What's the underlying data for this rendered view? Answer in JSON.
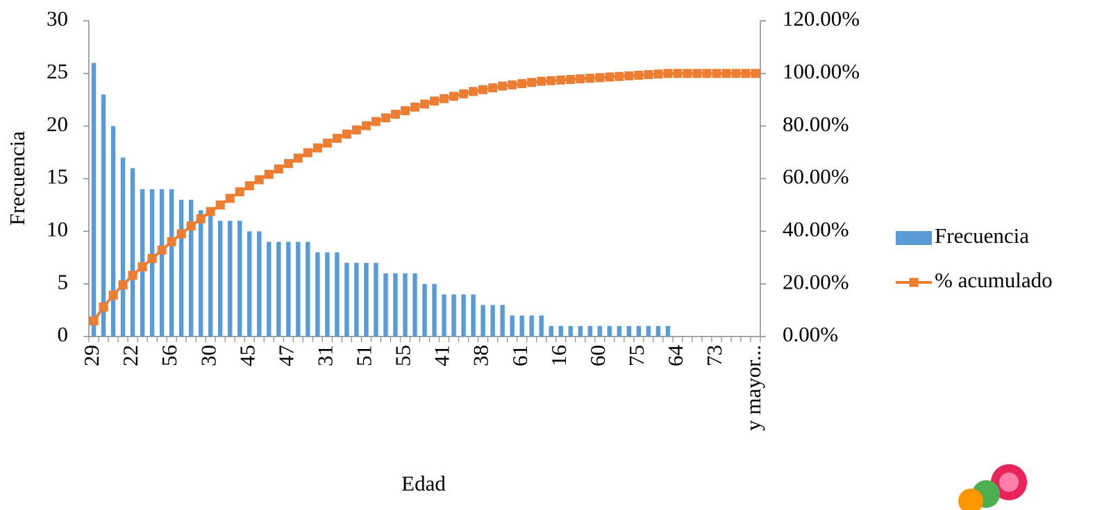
{
  "chart_data": {
    "type": "pareto",
    "x_label": "Edad",
    "y_label": "Frecuencia",
    "categories": [
      "29",
      null,
      null,
      null,
      "22",
      null,
      null,
      null,
      "56",
      null,
      null,
      null,
      "30",
      null,
      null,
      null,
      "45",
      null,
      null,
      null,
      "47",
      null,
      null,
      null,
      "31",
      null,
      null,
      null,
      "51",
      null,
      null,
      null,
      "55",
      null,
      null,
      null,
      "41",
      null,
      null,
      null,
      "38",
      null,
      null,
      null,
      "61",
      null,
      null,
      null,
      "16",
      null,
      null,
      null,
      "60",
      null,
      null,
      null,
      "75",
      null,
      null,
      null,
      "64",
      null,
      null,
      null,
      "73",
      null,
      null,
      null,
      "y mayor..."
    ],
    "series": [
      {
        "name": "Frecuencia",
        "color": "#5b9bd5",
        "kind": "bar",
        "values": [
          26,
          23,
          20,
          17,
          16,
          14,
          14,
          14,
          14,
          13,
          13,
          12,
          12,
          11,
          11,
          11,
          10,
          10,
          9,
          9,
          9,
          9,
          9,
          8,
          8,
          8,
          7,
          7,
          7,
          7,
          6,
          6,
          6,
          6,
          5,
          5,
          4,
          4,
          4,
          4,
          3,
          3,
          3,
          2,
          2,
          2,
          2,
          1,
          1,
          1,
          1,
          1,
          1,
          1,
          1,
          1,
          1,
          1,
          1,
          1,
          0,
          0,
          0,
          0,
          0,
          0,
          0,
          0,
          0
        ]
      },
      {
        "name": "% acumulado",
        "color": "#ed7d31",
        "kind": "line",
        "axis": "y2",
        "values": [
          5.94,
          11.19,
          15.75,
          19.63,
          23.29,
          26.48,
          29.68,
          32.88,
          36.07,
          39.04,
          42.01,
          44.75,
          47.49,
          50.0,
          52.51,
          55.02,
          57.31,
          59.59,
          61.64,
          63.7,
          65.75,
          67.81,
          69.86,
          71.69,
          73.52,
          75.34,
          76.94,
          78.54,
          80.14,
          81.74,
          83.11,
          84.47,
          85.84,
          87.21,
          88.36,
          89.5,
          90.41,
          91.32,
          92.24,
          93.15,
          93.84,
          94.52,
          95.21,
          95.66,
          96.12,
          96.58,
          97.03,
          97.26,
          97.49,
          97.72,
          97.95,
          98.17,
          98.4,
          98.63,
          98.86,
          99.09,
          99.32,
          99.54,
          99.77,
          100,
          100,
          100,
          100,
          100,
          100,
          100,
          100,
          100,
          100
        ]
      }
    ],
    "ylim": [
      0,
      30
    ],
    "yticks": [
      0,
      5,
      10,
      15,
      20,
      25,
      30
    ],
    "y2lim": [
      0,
      120
    ],
    "y2ticks": [
      {
        "value": 0,
        "label": "0.00%"
      },
      {
        "value": 20,
        "label": "20.00%"
      },
      {
        "value": 40,
        "label": "40.00%"
      },
      {
        "value": 60,
        "label": "60.00%"
      },
      {
        "value": 80,
        "label": "80.00%"
      },
      {
        "value": 100,
        "label": "100.00%"
      },
      {
        "value": 120,
        "label": "120.00%"
      }
    ],
    "legend": "right"
  }
}
